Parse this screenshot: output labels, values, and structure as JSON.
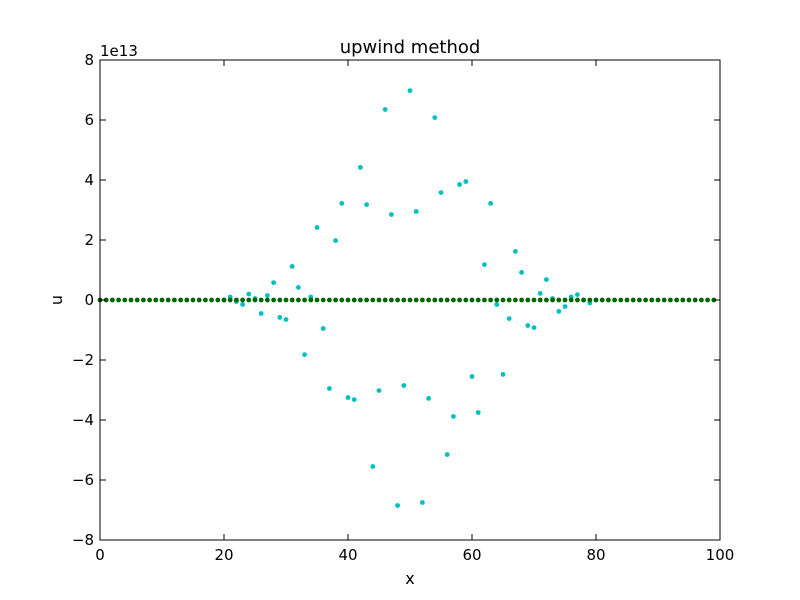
{
  "chart_data": {
    "type": "scatter",
    "title": "upwind method",
    "xlabel": "x",
    "ylabel": "u",
    "xlim": [
      0,
      100
    ],
    "ylim": [
      -8,
      8
    ],
    "y_scale_label": "1e13",
    "xticks": [
      "0",
      "20",
      "40",
      "60",
      "80",
      "100"
    ],
    "yticks": [
      "−8",
      "−6",
      "−4",
      "−2",
      "0",
      "2",
      "4",
      "6",
      "8"
    ],
    "grid": false,
    "series": [
      {
        "color": "#00bfbf",
        "x": [
          20,
          21,
          22,
          23,
          24,
          25,
          26,
          27,
          28,
          29,
          30,
          31,
          32,
          33,
          34,
          35,
          36,
          37,
          38,
          39,
          40,
          41,
          42,
          43,
          44,
          45,
          46,
          47,
          48,
          49,
          50,
          51,
          52,
          53,
          54,
          55,
          56,
          57,
          58,
          59,
          60,
          61,
          62,
          63,
          64,
          65,
          66,
          67,
          68,
          69,
          70,
          71,
          72,
          73,
          74,
          75,
          76,
          77,
          78,
          79,
          80
        ],
        "y": [
          0.0,
          0.1,
          -0.05,
          -0.15,
          0.2,
          0.05,
          -0.45,
          0.15,
          0.58,
          -0.58,
          -0.65,
          1.12,
          0.42,
          -1.82,
          0.1,
          2.42,
          -0.95,
          -2.95,
          1.98,
          3.22,
          -3.25,
          -3.32,
          4.42,
          3.18,
          -5.55,
          -3.02,
          6.35,
          2.85,
          -6.85,
          -2.85,
          6.98,
          2.95,
          -6.75,
          -3.28,
          6.08,
          3.58,
          -5.15,
          -3.88,
          3.85,
          3.95,
          -2.55,
          -3.75,
          1.18,
          3.22,
          -0.15,
          -2.48,
          -0.62,
          1.62,
          0.92,
          -0.85,
          -0.92,
          0.22,
          0.68,
          0.05,
          -0.38,
          -0.22,
          0.1,
          0.18,
          0.0,
          -0.1,
          0.0
        ]
      },
      {
        "color": "#006400",
        "x": [
          0,
          1,
          2,
          3,
          4,
          5,
          6,
          7,
          8,
          9,
          10,
          11,
          12,
          13,
          14,
          15,
          16,
          17,
          18,
          19,
          20,
          21,
          22,
          23,
          24,
          25,
          26,
          27,
          28,
          29,
          30,
          31,
          32,
          33,
          34,
          35,
          36,
          37,
          38,
          39,
          40,
          41,
          42,
          43,
          44,
          45,
          46,
          47,
          48,
          49,
          50,
          51,
          52,
          53,
          54,
          55,
          56,
          57,
          58,
          59,
          60,
          61,
          62,
          63,
          64,
          65,
          66,
          67,
          68,
          69,
          70,
          71,
          72,
          73,
          74,
          75,
          76,
          77,
          78,
          79,
          80,
          81,
          82,
          83,
          84,
          85,
          86,
          87,
          88,
          89,
          90,
          91,
          92,
          93,
          94,
          95,
          96,
          97,
          98,
          99
        ],
        "y": [
          0,
          0,
          0,
          0,
          0,
          0,
          0,
          0,
          0,
          0,
          0,
          0,
          0,
          0,
          0,
          0,
          0,
          0,
          0,
          0,
          0,
          0,
          0,
          0,
          0,
          0,
          0,
          0,
          0,
          0,
          0,
          0,
          0,
          0,
          0,
          0,
          0,
          0,
          0,
          0,
          0,
          0,
          0,
          0,
          0,
          0,
          0,
          0,
          0,
          0,
          0,
          0,
          0,
          0,
          0,
          0,
          0,
          0,
          0,
          0,
          0,
          0,
          0,
          0,
          0,
          0,
          0,
          0,
          0,
          0,
          0,
          0,
          0,
          0,
          0,
          0,
          0,
          0,
          0,
          0,
          0,
          0,
          0,
          0,
          0,
          0,
          0,
          0,
          0,
          0,
          0,
          0,
          0,
          0,
          0,
          0,
          0,
          0,
          0,
          0
        ]
      }
    ]
  }
}
